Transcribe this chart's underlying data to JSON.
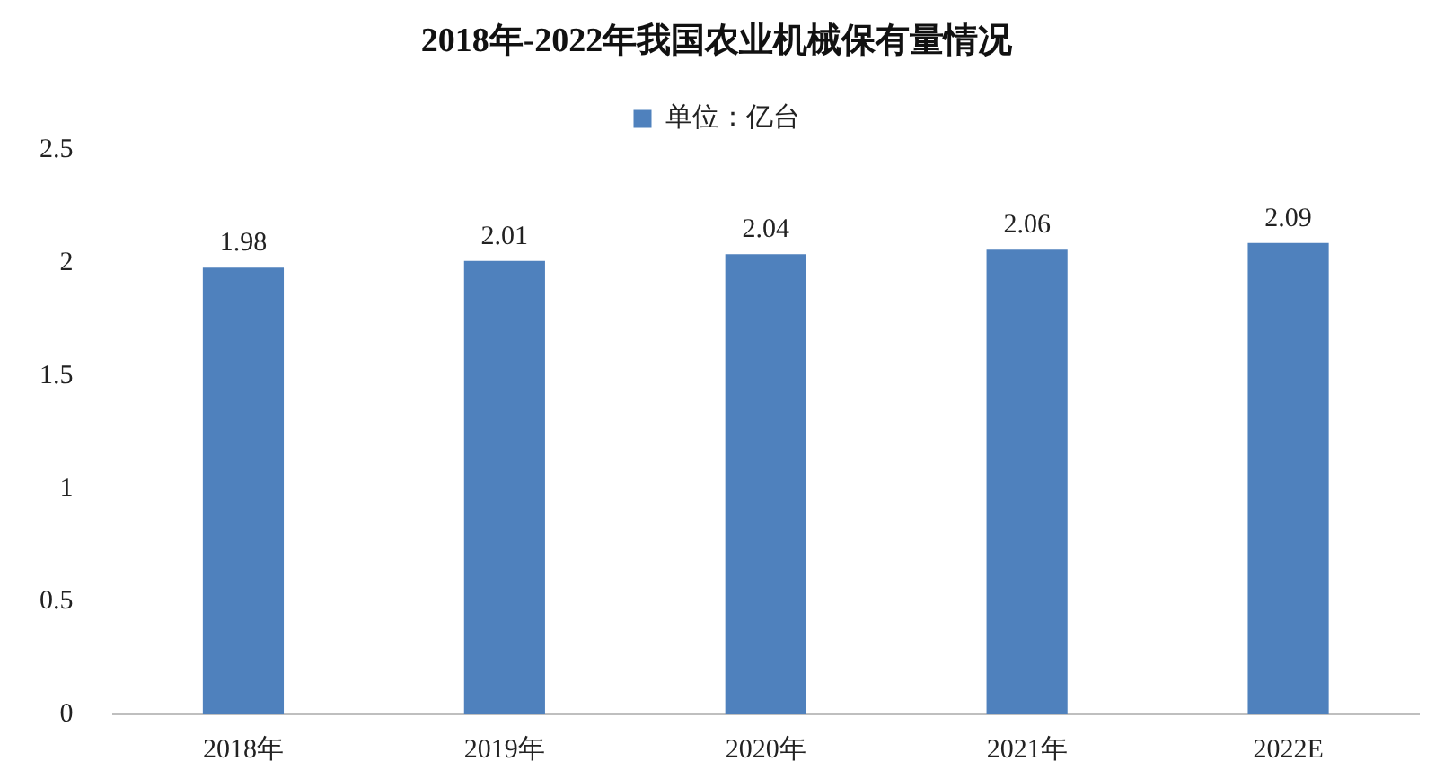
{
  "chart_data": {
    "type": "bar",
    "title": "2018年-2022年我国农业机械保有量情况",
    "categories": [
      "2018年",
      "2019年",
      "2020年",
      "2021年",
      "2022E"
    ],
    "series": [
      {
        "name": "单位：亿台",
        "color": "#4f81bd",
        "values": [
          1.98,
          2.01,
          2.04,
          2.06,
          2.09
        ]
      }
    ],
    "ylim": [
      0,
      2.5
    ],
    "yticks": [
      0,
      0.5,
      1,
      1.5,
      2,
      2.5
    ],
    "grid": false,
    "legend": "top",
    "data_labels": true
  }
}
